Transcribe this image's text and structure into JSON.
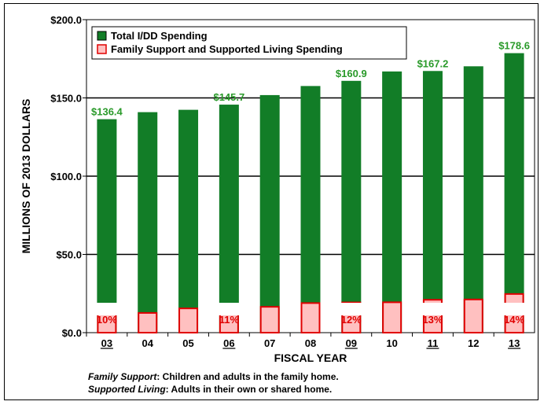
{
  "chart_data": {
    "type": "bar",
    "categories": [
      "03",
      "04",
      "05",
      "06",
      "07",
      "08",
      "09",
      "10",
      "11",
      "12",
      "13"
    ],
    "underlined_categories": [
      "03",
      "06",
      "09",
      "11",
      "13"
    ],
    "series": [
      {
        "name": "Total I/DD Spending",
        "values": [
          136.4,
          140.9,
          142.4,
          145.7,
          151.8,
          157.6,
          160.9,
          166.9,
          167.2,
          170.2,
          178.6
        ],
        "color": "#127d27"
      },
      {
        "name": "Family Support and Supported Living Spending",
        "values": [
          13.6,
          12.6,
          15.5,
          16.0,
          16.5,
          18.9,
          19.3,
          19.4,
          21.0,
          21.2,
          24.7
        ],
        "color": "#ffc0c0",
        "stroke": "#e00000"
      }
    ],
    "data_labels": [
      {
        "category": "03",
        "text": "$136.4"
      },
      {
        "category": "06",
        "text": "$145.7"
      },
      {
        "category": "09",
        "text": "$160.9"
      },
      {
        "category": "11",
        "text": "$167.2"
      },
      {
        "category": "13",
        "text": "$178.6"
      }
    ],
    "percent_labels": [
      {
        "category": "03",
        "text": "10%"
      },
      {
        "category": "06",
        "text": "11%"
      },
      {
        "category": "09",
        "text": "12%"
      },
      {
        "category": "11",
        "text": "13%"
      },
      {
        "category": "13",
        "text": "14%"
      }
    ],
    "yticks": [
      0,
      50,
      100,
      150,
      200
    ],
    "ytick_labels": [
      "$0.0",
      "$50.0",
      "$100.0",
      "$150.0",
      "$200.0"
    ],
    "ylim": [
      0,
      200
    ],
    "xlabel": "FISCAL YEAR",
    "ylabel": "MILLIONS OF 2013 DOLLARS",
    "legend_position": "top-left",
    "grid": "horizontal"
  },
  "notes": [
    {
      "term": "Family Support",
      "text": ": Children and adults in the family home."
    },
    {
      "term": "Supported Living",
      "text": ": Adults in their own or shared home."
    }
  ]
}
